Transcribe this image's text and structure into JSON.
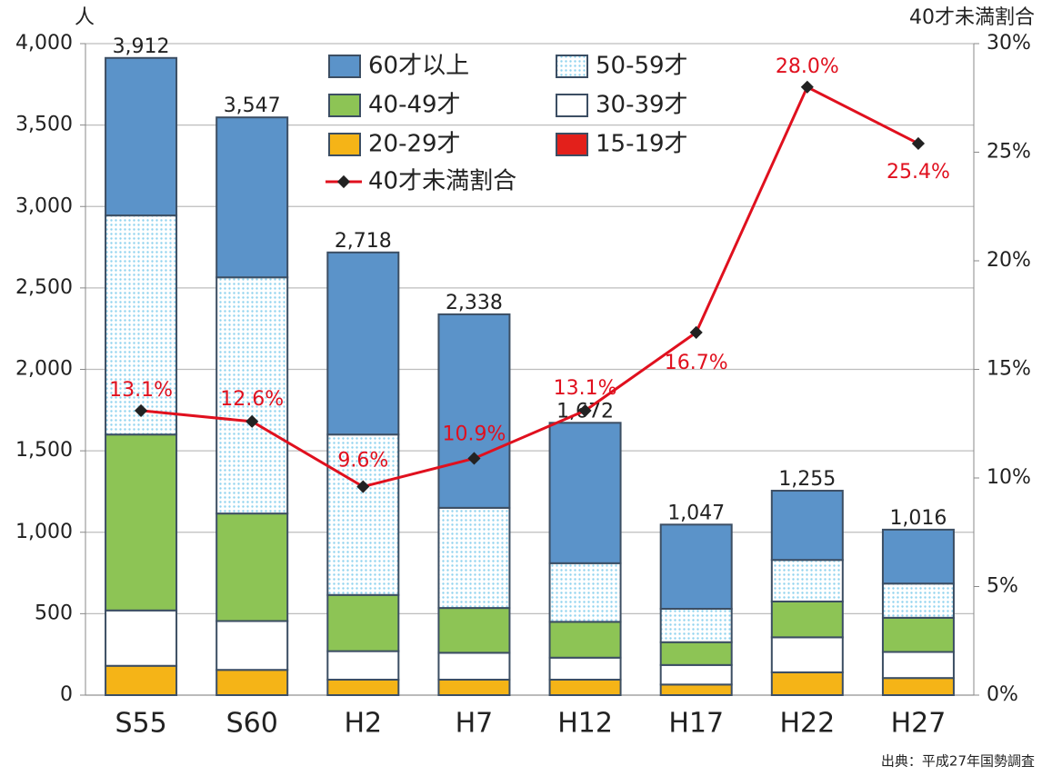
{
  "chart_data": {
    "type": "bar",
    "y_label": "人",
    "y2_label": "40才未満割合",
    "source": "出典：平成27年国勢調査",
    "categories": [
      "S55",
      "S60",
      "H2",
      "H7",
      "H12",
      "H17",
      "H22",
      "H27"
    ],
    "series": [
      {
        "name": "60才以上",
        "color": "#5b93c9",
        "values": [
          967,
          982,
          1118,
          1188,
          862,
          517,
          425,
          331
        ]
      },
      {
        "name": "50-59才",
        "color": "#8fd3ef",
        "pattern": "dots",
        "values": [
          1345,
          1450,
          985,
          615,
          360,
          205,
          255,
          210
        ]
      },
      {
        "name": "40-49才",
        "color": "#8dc455",
        "values": [
          1080,
          660,
          345,
          275,
          220,
          140,
          220,
          210
        ]
      },
      {
        "name": "30-39才",
        "color": "#ffffff",
        "values": [
          340,
          300,
          175,
          165,
          135,
          120,
          215,
          160
        ]
      },
      {
        "name": "20-29才",
        "color": "#f5b417",
        "values": [
          180,
          155,
          95,
          95,
          95,
          65,
          140,
          105
        ]
      },
      {
        "name": "15-19才",
        "color": "#e3201b",
        "values": [
          0,
          0,
          0,
          0,
          0,
          0,
          0,
          0
        ]
      },
      {
        "name": "40才未満割合",
        "type": "line",
        "axis": "y2",
        "color": "#e0101e",
        "values": [
          13.1,
          12.6,
          9.6,
          10.9,
          13.1,
          16.7,
          28.0,
          25.4
        ],
        "value_labels": [
          "13.1%",
          "12.6%",
          "9.6%",
          "10.9%",
          "13.1%",
          "16.7%",
          "28.0%",
          "25.4%"
        ]
      }
    ],
    "totals": [
      3912,
      3547,
      2718,
      2338,
      1672,
      1047,
      1255,
      1016
    ],
    "total_labels": [
      "3,912",
      "3,547",
      "2,718",
      "2,338",
      "1,672",
      "1,047",
      "1,255",
      "1,016"
    ],
    "ylim": [
      0,
      4000
    ],
    "yticks": [
      0,
      500,
      {
        "value": 1000,
        "label": "1,000"
      },
      {
        "value": 1500,
        "label": "1,500"
      },
      {
        "value": 2000,
        "label": "2,000"
      },
      {
        "value": 2500,
        "label": "2,500"
      },
      {
        "value": 3000,
        "label": "3,000"
      },
      {
        "value": 3500,
        "label": "3,500"
      },
      {
        "value": 4000,
        "label": "4,000"
      }
    ],
    "y2lim": [
      0,
      30
    ],
    "y2ticks": [
      {
        "value": 0,
        "label": "0%"
      },
      {
        "value": 5,
        "label": "5%"
      },
      {
        "value": 10,
        "label": "10%"
      },
      {
        "value": 15,
        "label": "15%"
      },
      {
        "value": 20,
        "label": "20%"
      },
      {
        "value": 25,
        "label": "25%"
      },
      {
        "value": 30,
        "label": "30%"
      }
    ],
    "grid": true
  }
}
